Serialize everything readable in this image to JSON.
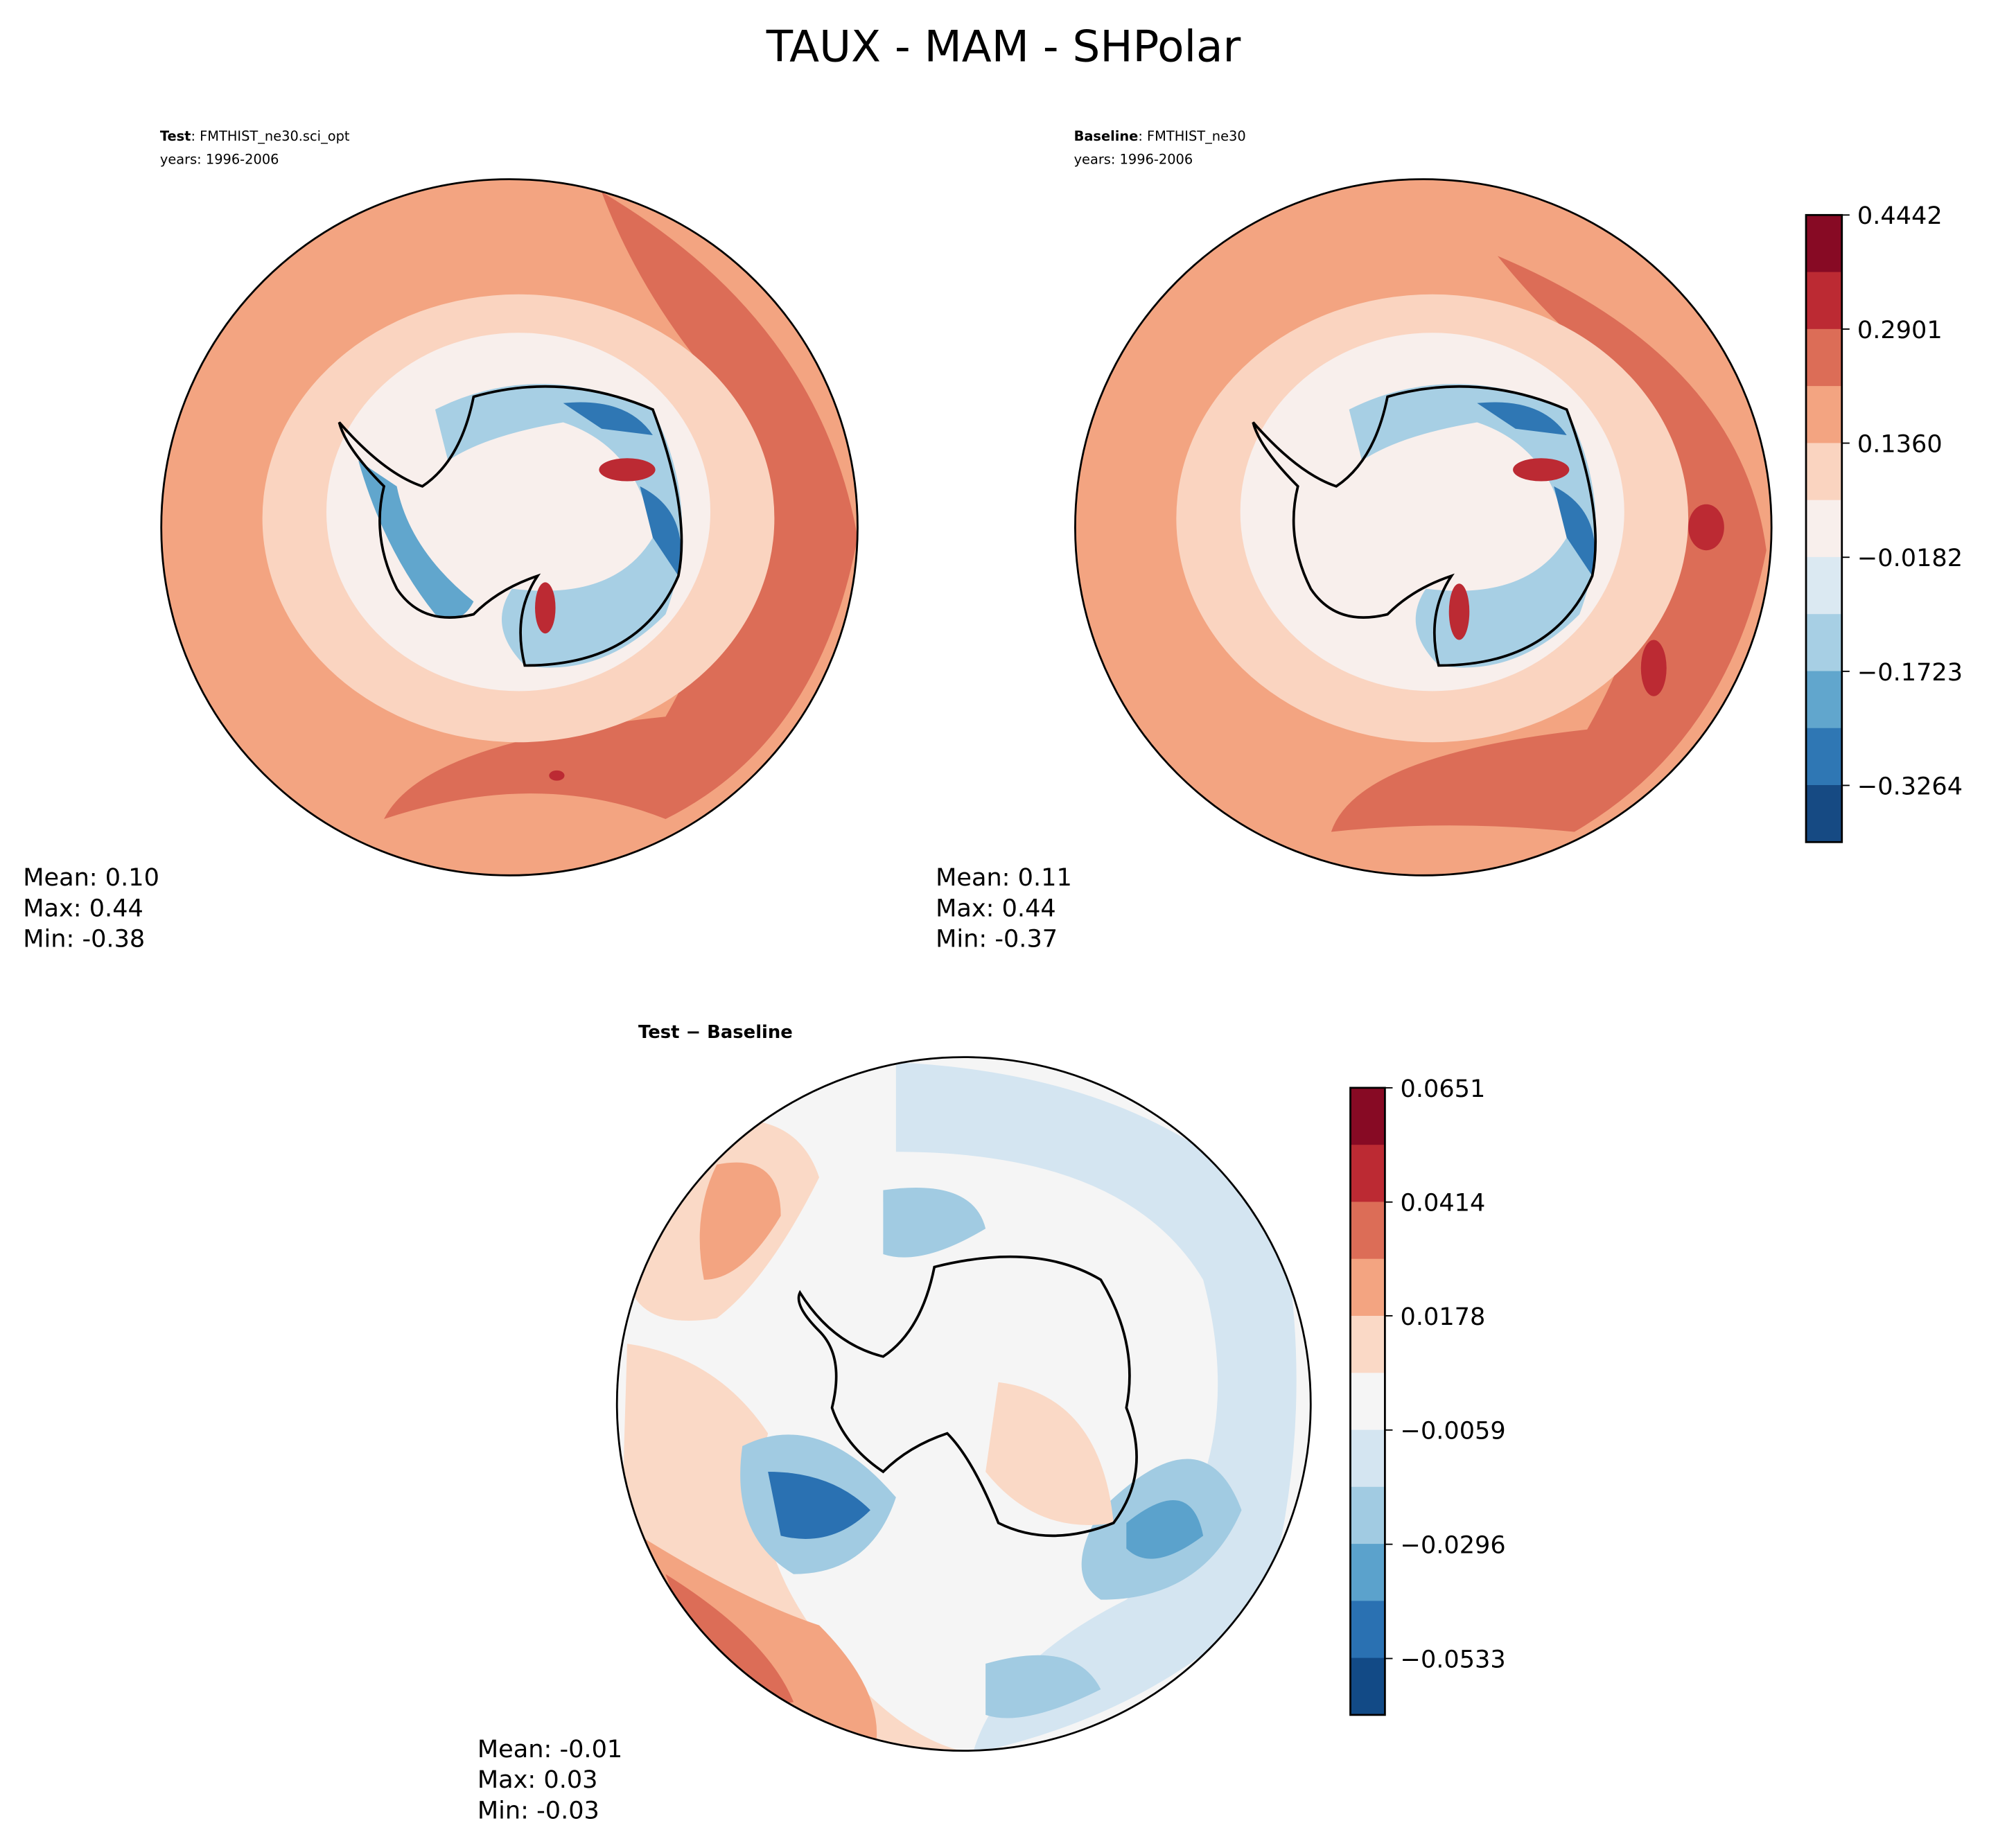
{
  "chart_data": {
    "type": "heatmap",
    "title": "TAUX - MAM - SHPolar",
    "panels": [
      {
        "id": "test",
        "label_bold": "Test",
        "label_rest": ": FMTHIST_ne30.sci_opt",
        "years": "years: 1996-2006",
        "stats": {
          "mean": "Mean:  0.10",
          "max": "Max:  0.44",
          "min": "Min: -0.38"
        }
      },
      {
        "id": "baseline",
        "label_bold": "Baseline",
        "label_rest": ": FMTHIST_ne30",
        "years": "years: 1996-2006",
        "stats": {
          "mean": "Mean:  0.11",
          "max": "Max:  0.44",
          "min": "Min: -0.37"
        }
      },
      {
        "id": "diff",
        "label_bold": "Test − Baseline",
        "stats": {
          "mean": "Mean: -0.01",
          "max": "Max:  0.03",
          "min": "Min: -0.03"
        }
      }
    ],
    "colorbars": [
      {
        "ticks": [
          "0.4442",
          "0.2901",
          "0.1360",
          "−0.0182",
          "−0.1723",
          "−0.3264"
        ],
        "tick_values": [
          0.4442,
          0.2901,
          0.136,
          -0.0182,
          -0.1723,
          -0.3264
        ],
        "range": [
          -0.403,
          0.4442
        ],
        "colors": [
          "#870a24",
          "#bc2a33",
          "#dc6d57",
          "#f3a481",
          "#fad4c0",
          "#f8efec",
          "#dbe9f2",
          "#a7cfe4",
          "#61a6cd",
          "#2f77b4",
          "#164a83"
        ]
      },
      {
        "ticks": [
          "0.0651",
          "0.0414",
          "0.0178",
          "−0.0059",
          "−0.0296",
          "−0.0533"
        ],
        "tick_values": [
          0.0651,
          0.0414,
          0.0178,
          -0.0059,
          -0.0296,
          -0.0533
        ],
        "range": [
          -0.065,
          0.0651
        ],
        "colors": [
          "#870a24",
          "#bc2a33",
          "#dc6d57",
          "#f3a481",
          "#fad9c6",
          "#f5f5f5",
          "#d4e5f1",
          "#a1cbe2",
          "#5ba2cc",
          "#2a71b2",
          "#124a86"
        ]
      }
    ]
  }
}
